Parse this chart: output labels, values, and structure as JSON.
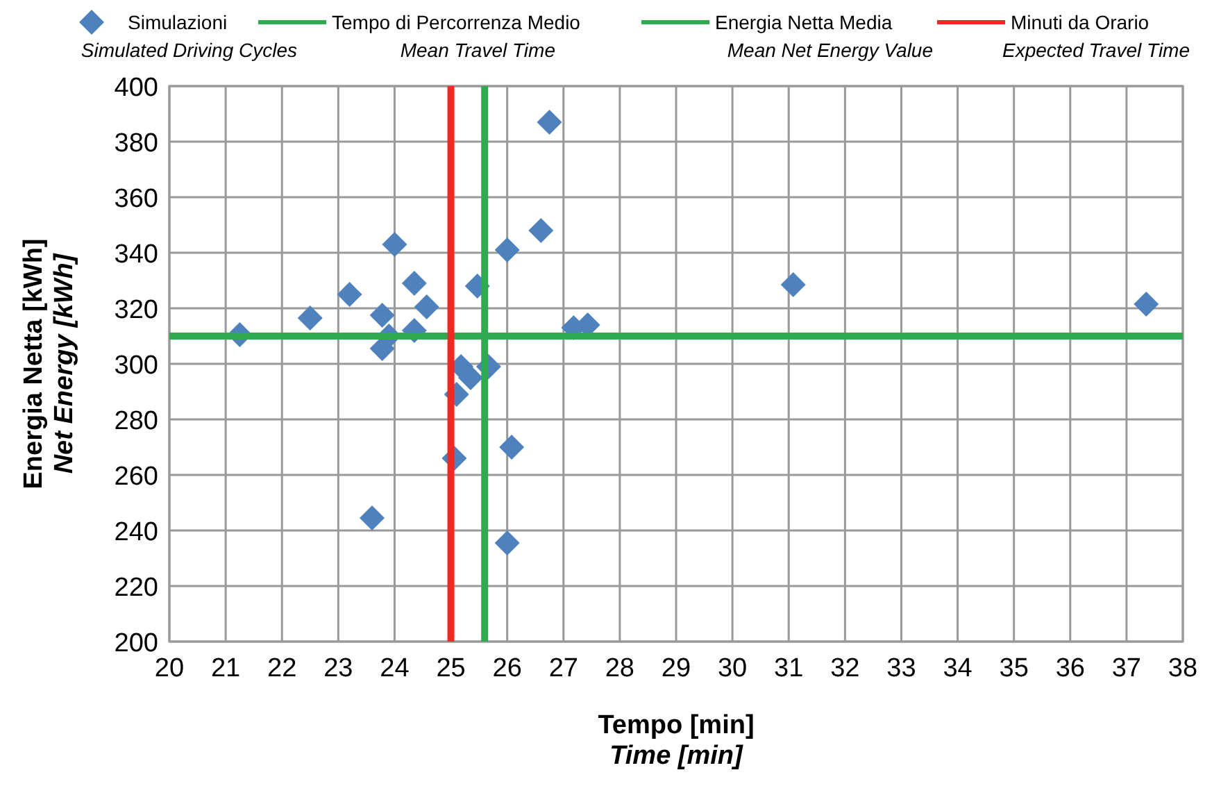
{
  "chart_data": {
    "type": "scatter",
    "xlabel": "Tempo [min]\nTime [min]",
    "ylabel": "Energia Netta [kWh]\nNet Energy [kWh]",
    "xlim": [
      20,
      38
    ],
    "xticks": [
      20,
      21,
      22,
      23,
      24,
      25,
      26,
      27,
      28,
      29,
      30,
      31,
      32,
      33,
      34,
      35,
      36,
      37,
      38
    ],
    "ylim": [
      200,
      400
    ],
    "yticks": [
      200,
      220,
      240,
      260,
      280,
      300,
      320,
      340,
      360,
      380,
      400
    ],
    "grid": true,
    "legend": "top",
    "marker": "diamond",
    "series": [
      {
        "name": "Simulazioni\nSimulated Driving Cycles",
        "color": "#4f81bd",
        "x": [
          26.75,
          24.0,
          26.0,
          26.6,
          24.35,
          25.47,
          23.2,
          24.57,
          22.5,
          23.78,
          21.25,
          24.35,
          23.78,
          23.9,
          27.18,
          27.43,
          25.18,
          25.35,
          25.67,
          25.1,
          25.06,
          26.08,
          23.6,
          26.0,
          31.08,
          37.35
        ],
        "values": [
          387,
          343,
          341,
          348,
          329,
          328,
          325,
          320.5,
          316.5,
          317.5,
          310.5,
          312,
          305.5,
          310,
          313,
          314,
          299,
          295,
          299,
          289,
          266,
          270,
          244.5,
          235.5,
          328.5,
          321.5
        ]
      }
    ],
    "ref_lines": [
      {
        "axis": "x",
        "value": 25.6,
        "label": "Tempo di Percorrenza Medio\nMean Travel Time",
        "color": "#2eaa4f"
      },
      {
        "axis": "y",
        "value": 310,
        "label": "Energia Netta Media\nMean Net Energy Value",
        "color": "#2eaa4f"
      },
      {
        "axis": "x",
        "value": 25,
        "label": "Minuti da Orario\nExpected Travel Time",
        "color": "#ee2a24"
      }
    ]
  }
}
